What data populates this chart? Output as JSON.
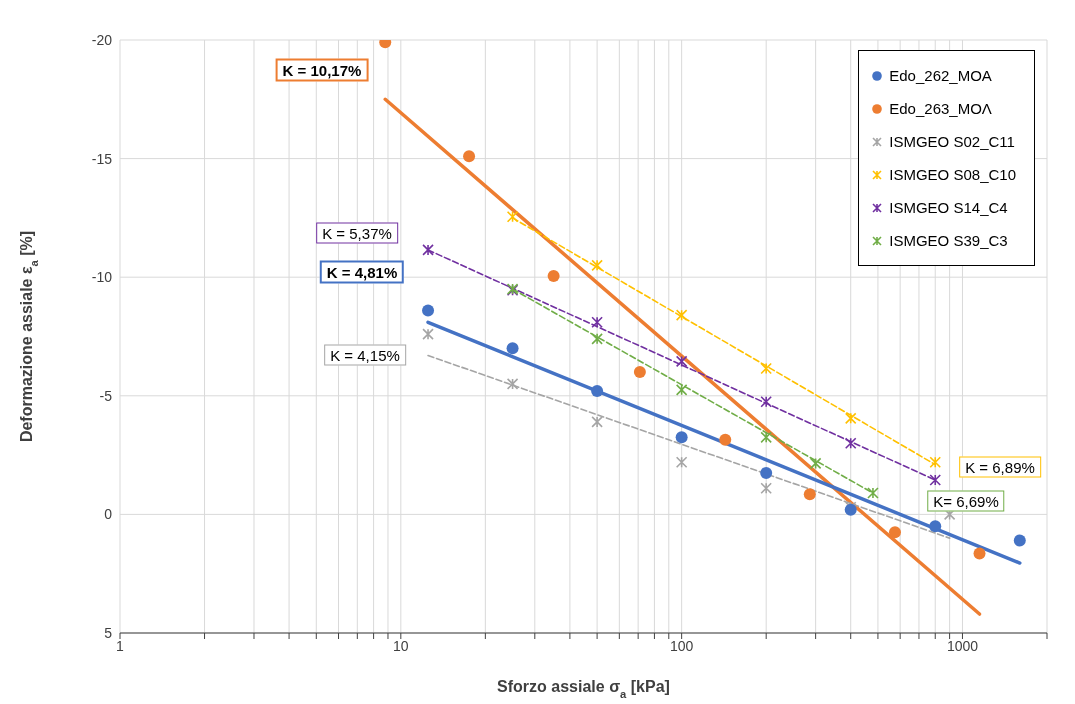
{
  "chart_data": {
    "type": "scatter",
    "xlabel": "Sforzo assiale σ$_{a}$ [kPa]",
    "ylabel": "Deformazione assiale ε$_{a}$ [%]",
    "log": "x",
    "grid": true,
    "legend": "top right",
    "xlim": [
      1,
      2000
    ],
    "xticks": [
      1,
      {
        "value": 2,
        "label": null
      },
      {
        "value": 3,
        "label": null
      },
      {
        "value": 4,
        "label": null
      },
      {
        "value": 5,
        "label": null
      },
      {
        "value": 6,
        "label": null
      },
      {
        "value": 7,
        "label": null
      },
      {
        "value": 8,
        "label": null
      },
      {
        "value": 9,
        "label": null
      },
      10,
      {
        "value": 20,
        "label": null
      },
      {
        "value": 30,
        "label": null
      },
      {
        "value": 40,
        "label": null
      },
      {
        "value": 50,
        "label": null
      },
      {
        "value": 60,
        "label": null
      },
      {
        "value": 70,
        "label": null
      },
      {
        "value": 80,
        "label": null
      },
      {
        "value": 90,
        "label": null
      },
      100,
      {
        "value": 200,
        "label": null
      },
      {
        "value": 300,
        "label": null
      },
      {
        "value": 400,
        "label": null
      },
      {
        "value": 500,
        "label": null
      },
      {
        "value": 600,
        "label": null
      },
      {
        "value": 700,
        "label": null
      },
      {
        "value": 800,
        "label": null
      },
      {
        "value": 900,
        "label": null
      },
      1000,
      {
        "value": 2000,
        "label": null
      }
    ],
    "ylim": [
      5,
      -20
    ],
    "yticks": [
      -20,
      -15,
      -10,
      -5,
      0,
      5
    ],
    "series": [
      {
        "name": "Edo_262_MOA",
        "marker": "circle",
        "color": "#4472c4",
        "x": [
          12.5,
          25,
          50,
          100,
          200,
          400,
          800,
          1600
        ],
        "values": [
          -8.6,
          -7.0,
          -5.2,
          -3.25,
          -1.75,
          -0.2,
          0.5,
          1.1
        ]
      },
      {
        "name": "Edo_263_MOΛ",
        "marker": "circle",
        "color": "#ed7d31",
        "x": [
          8.8,
          17.5,
          35,
          71,
          143,
          286,
          575,
          1150
        ],
        "values": [
          -19.9,
          -15.1,
          -10.05,
          -6.0,
          -3.15,
          -0.85,
          0.75,
          1.65
        ]
      },
      {
        "name": "ISMGEO S02_C11",
        "marker": "cross",
        "color": "#a5a5a5",
        "x": [
          12.5,
          25,
          50,
          100,
          200,
          400,
          900
        ],
        "values": [
          -7.6,
          -5.5,
          -3.9,
          -2.2,
          -1.1,
          -0.3,
          0.0
        ]
      },
      {
        "name": "ISMGEO S08_C10",
        "marker": "cross",
        "color": "#ffc000",
        "x": [
          25,
          50,
          100,
          200,
          400,
          800
        ],
        "values": [
          -12.55,
          -10.5,
          -8.4,
          -6.15,
          -4.05,
          -2.2
        ]
      },
      {
        "name": "ISMGEO S14_C4",
        "marker": "cross",
        "color": "#7030a0",
        "x": [
          12.5,
          25,
          50,
          100,
          200,
          400,
          800
        ],
        "values": [
          -11.15,
          -9.45,
          -8.1,
          -6.45,
          -4.75,
          -3.0,
          -1.45
        ]
      },
      {
        "name": "ISMGEO S39_C3",
        "marker": "cross",
        "color": "#70ad47",
        "x": [
          25,
          50,
          100,
          200,
          300,
          480
        ],
        "values": [
          -9.5,
          -7.4,
          -5.25,
          -3.25,
          -2.15,
          -0.9
        ]
      },
      {
        "type": "line",
        "line_style": "solid",
        "color": "#ed7d31",
        "x": [
          8.8,
          1150
        ],
        "values": [
          -17.5,
          4.2
        ]
      },
      {
        "type": "line",
        "line_style": "solid",
        "color": "#4472c4",
        "x": [
          12.5,
          1600
        ],
        "values": [
          -8.1,
          2.05
        ]
      },
      {
        "type": "line",
        "line_style": "dashed",
        "color": "#a5a5a5",
        "x": [
          12.5,
          900
        ],
        "values": [
          -6.7,
          1.0
        ]
      },
      {
        "type": "line",
        "line_style": "dashed",
        "color": "#ffc000",
        "x": [
          25,
          800
        ],
        "values": [
          -12.5,
          -2.1
        ]
      },
      {
        "type": "line",
        "line_style": "dashed",
        "color": "#7030a0",
        "x": [
          12.5,
          800
        ],
        "values": [
          -11.15,
          -1.45
        ]
      },
      {
        "type": "line",
        "line_style": "dashed",
        "color": "#70ad47",
        "x": [
          25,
          480
        ],
        "values": [
          -9.5,
          -0.9
        ]
      }
    ],
    "annotations": [
      "K = 10,17%",
      "K = 4,81%",
      "K = 4,15%",
      "K = 6,89%",
      "K = 5,37%",
      "K= 6,69%"
    ]
  }
}
